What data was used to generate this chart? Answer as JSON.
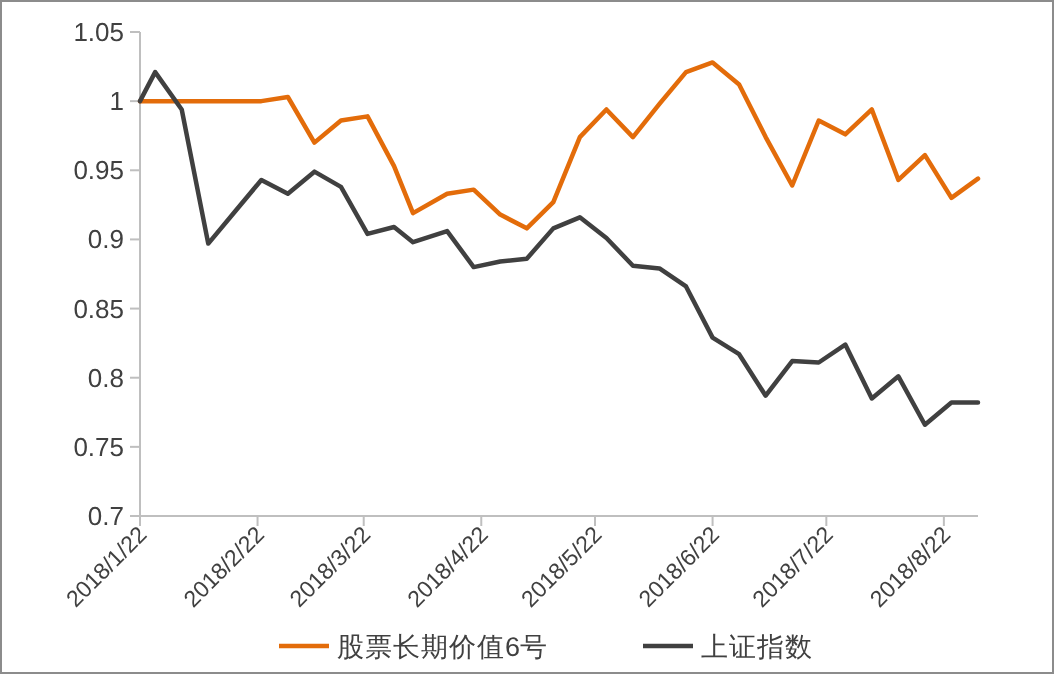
{
  "chart_data": {
    "type": "line",
    "x": [
      "2018-01-22",
      "2018-01-26",
      "2018-02-02",
      "2018-02-09",
      "2018-02-16",
      "2018-02-23",
      "2018-03-02",
      "2018-03-09",
      "2018-03-16",
      "2018-03-23",
      "2018-03-30",
      "2018-04-04",
      "2018-04-13",
      "2018-04-20",
      "2018-04-27",
      "2018-05-04",
      "2018-05-11",
      "2018-05-18",
      "2018-05-25",
      "2018-06-01",
      "2018-06-08",
      "2018-06-15",
      "2018-06-22",
      "2018-06-29",
      "2018-07-06",
      "2018-07-13",
      "2018-07-20",
      "2018-07-27",
      "2018-08-03",
      "2018-08-10",
      "2018-08-17",
      "2018-08-24",
      "2018-08-31"
    ],
    "series": [
      {
        "name": "股票长期价值6号",
        "color": "#e36c0a",
        "values": [
          1.0,
          1.0,
          1.0,
          1.0,
          1.0,
          1.0,
          1.003,
          0.97,
          0.986,
          0.989,
          0.953,
          0.919,
          0.933,
          0.936,
          0.918,
          0.908,
          0.927,
          0.974,
          0.994,
          0.974,
          0.998,
          1.021,
          1.028,
          1.012,
          0.974,
          0.939,
          0.986,
          0.976,
          0.994,
          0.943,
          0.961,
          0.93,
          0.944
        ]
      },
      {
        "name": "上证指数",
        "color": "#404040",
        "values": [
          1.0,
          1.021,
          0.994,
          0.897,
          0.92,
          0.943,
          0.933,
          0.949,
          0.938,
          0.904,
          0.909,
          0.898,
          0.906,
          0.88,
          0.884,
          0.886,
          0.908,
          0.916,
          0.901,
          0.881,
          0.879,
          0.866,
          0.829,
          0.817,
          0.787,
          0.812,
          0.811,
          0.824,
          0.785,
          0.801,
          0.766,
          0.782,
          0.782
        ]
      }
    ],
    "xlim": [
      "2018-01-22",
      "2018-08-31"
    ],
    "xticks": [
      {
        "value": "2018-01-22",
        "label": "2018/1/22"
      },
      {
        "value": "2018-02-22",
        "label": "2018/2/22"
      },
      {
        "value": "2018-03-22",
        "label": "2018/3/22"
      },
      {
        "value": "2018-04-22",
        "label": "2018/4/22"
      },
      {
        "value": "2018-05-22",
        "label": "2018/5/22"
      },
      {
        "value": "2018-06-22",
        "label": "2018/6/22"
      },
      {
        "value": "2018-07-22",
        "label": "2018/7/22"
      },
      {
        "value": "2018-08-22",
        "label": "2018/8/22"
      }
    ],
    "ylim": [
      0.7,
      1.05
    ],
    "yticks": [
      0.7,
      0.75,
      0.8,
      0.85,
      0.9,
      0.95,
      1,
      1.05
    ],
    "legend": "bottom",
    "marker": "none",
    "line_style": "solid"
  }
}
